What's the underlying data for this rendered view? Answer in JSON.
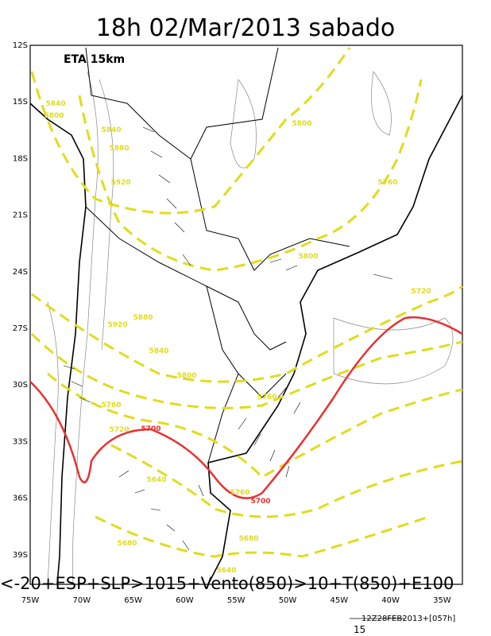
{
  "title": "18h 02/Mar/2013 sabado",
  "model": "ETA 15km",
  "lat_labels": [
    "12S",
    "15S",
    "18S",
    "21S",
    "24S",
    "27S",
    "30S",
    "33S",
    "36S",
    "39S"
  ],
  "lon_labels": [
    "75W",
    "70W",
    "65W",
    "60W",
    "55W",
    "50W",
    "45W",
    "40W",
    "35W"
  ],
  "contour_labels": [
    "5840",
    "5800",
    "5840",
    "5880",
    "5920",
    "5800",
    "5760",
    "5800",
    "5720",
    "5880",
    "5920",
    "5840",
    "5800",
    "5760",
    "5720",
    "5700",
    "5760",
    "5640",
    "5760",
    "5700",
    "5680",
    "5680",
    "5640"
  ],
  "description": "<-20+ESP+SLP>1015+Vento(850)>10+T(850)+E100",
  "run": "12Z28FEB2013+[057h]",
  "vector_scale": "15"
}
